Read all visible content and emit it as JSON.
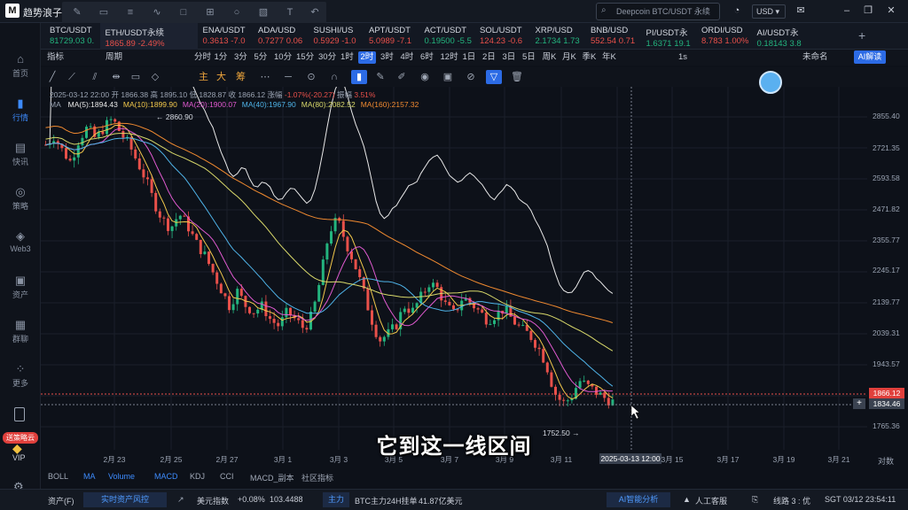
{
  "app": {
    "name": "趋势浪子",
    "search_placeholder": "Deepcoin BTC/USDT 永续",
    "currency": "USD"
  },
  "tickers": [
    {
      "sym": "BTC/USDT",
      "px": "81729.03",
      "chg": "0.",
      "dir": "up"
    },
    {
      "sym": "ETH/USDT永续",
      "px": "1865.89",
      "chg": "-2.49%",
      "dir": "dn",
      "active": true
    },
    {
      "sym": "ENA/USDT",
      "px": "0.3613",
      "chg": "-7.0",
      "dir": "dn"
    },
    {
      "sym": "ADA/USD",
      "px": "0.7277",
      "chg": "0.06",
      "dir": "dn"
    },
    {
      "sym": "SUSHI/US",
      "px": "0.5929",
      "chg": "-1.0",
      "dir": "dn"
    },
    {
      "sym": "APT/USDT",
      "px": "5.0989",
      "chg": "-7.1",
      "dir": "dn"
    },
    {
      "sym": "ACT/USDT",
      "px": "0.19500",
      "chg": "-5.5",
      "dir": "up"
    },
    {
      "sym": "SOL/USDT",
      "px": "124.23",
      "chg": "-0.6",
      "dir": "dn"
    },
    {
      "sym": "XRP/USD",
      "px": "2.1734",
      "chg": "1.73",
      "dir": "up"
    },
    {
      "sym": "BNB/USD",
      "px": "552.54",
      "chg": "0.71",
      "dir": "dn"
    },
    {
      "sym": "PI/USDT永",
      "px": "1.6371",
      "chg": "19.1",
      "dir": "up"
    },
    {
      "sym": "ORDI/USD",
      "px": "8.783",
      "chg": "1.00%",
      "dir": "dn"
    },
    {
      "sym": "AI/USDT永",
      "px": "0.18143",
      "chg": "3.8",
      "dir": "up"
    }
  ],
  "toolbar": {
    "indicator_label": "指标",
    "period_label": "周期",
    "intervals": [
      "分时",
      "1分",
      "3分",
      "5分",
      "10分",
      "15分",
      "30分",
      "1时",
      "2时",
      "3时",
      "4时",
      "6时",
      "12时",
      "1日",
      "2日",
      "3日",
      "5日",
      "周K",
      "月K",
      "季K",
      "年K"
    ],
    "active_interval": "2时",
    "right": {
      "sec": "1s",
      "layout": "未命名",
      "ai": "AI解读"
    }
  },
  "drawbar": {
    "tags": [
      "主",
      "大",
      "筹"
    ]
  },
  "sidebar": [
    {
      "label": "首页",
      "icon": "home-icon",
      "glyph": "⌂"
    },
    {
      "label": "行情",
      "icon": "chart-icon",
      "glyph": "▮",
      "active": true
    },
    {
      "label": "快讯",
      "icon": "news-icon",
      "glyph": "▤"
    },
    {
      "label": "策略",
      "icon": "strategy-icon",
      "glyph": "◎"
    },
    {
      "label": "Web3",
      "icon": "web3-icon",
      "glyph": "◈"
    },
    {
      "label": "资产",
      "icon": "wallet-icon",
      "glyph": "▣"
    },
    {
      "label": "群聊",
      "icon": "chat-icon",
      "glyph": "▦"
    },
    {
      "label": "更多",
      "icon": "more-icon",
      "glyph": "⁘"
    }
  ],
  "sidebar_bottom": {
    "promo": "送策略云",
    "vip": "VIP"
  },
  "candle_info": {
    "date": "2025-03-12 22:00",
    "open_label": "开",
    "open": "1866.38",
    "high_label": "高",
    "high": "1895.10",
    "low_label": "低",
    "low": "1828.87",
    "close_label": "收",
    "close": "1866.12",
    "chg_label": "涨幅",
    "chg": "-1.07%(-20.27)",
    "amp_label": "振幅",
    "amp": "3.51%"
  },
  "ma_info": [
    {
      "label": "MA(5):1894.43",
      "color": "#e8e8e8"
    },
    {
      "label": "MA(10):1899.90",
      "color": "#f2c84b"
    },
    {
      "label": "MA(20):1900.07",
      "color": "#e05ad0"
    },
    {
      "label": "MA(40):1967.90",
      "color": "#4fb3e8"
    },
    {
      "label": "MA(80):2082.52",
      "color": "#d8d86a"
    },
    {
      "label": "MA(160):2157.32",
      "color": "#f08a30"
    }
  ],
  "ma_title": "MA",
  "chart_data": {
    "type": "candlestick",
    "price_axis": [
      "2855.40",
      "2721.35",
      "2593.58",
      "2471.82",
      "2355.77",
      "2245.17",
      "2139.77",
      "2039.31",
      "1943.57",
      "1765.36"
    ],
    "x_labels": [
      "2月 23",
      "2月 25",
      "2月 27",
      "3月 1",
      "3月 3",
      "3月 5",
      "3月 7",
      "3月 9",
      "3月 11",
      "3月 15",
      "3月 17",
      "3月 19",
      "3月 21"
    ],
    "high_marker": "2860.90",
    "low_marker": "1752.50",
    "last_price": "1866.12",
    "crosshair_price": "1834.46",
    "crosshair_time": "2025-03-13 12:00",
    "close_path": [
      2760,
      2790,
      2740,
      2700,
      2780,
      2820,
      2780,
      2820,
      2850,
      2800,
      2760,
      2700,
      2640,
      2560,
      2500,
      2470,
      2520,
      2480,
      2420,
      2380,
      2320,
      2260,
      2200,
      2250,
      2200,
      2180,
      2200,
      2150,
      2130,
      2180,
      2150,
      2120,
      2170,
      2300,
      2460,
      2500,
      2420,
      2350,
      2260,
      2160,
      2080,
      2100,
      2130,
      2200,
      2180,
      2230,
      2280,
      2260,
      2200,
      2170,
      2230,
      2210,
      2180,
      2150,
      2170,
      2190,
      2150,
      2120,
      2100,
      2060,
      2000,
      1900,
      1860,
      1880,
      1940,
      1920,
      1900,
      1880,
      1866
    ]
  },
  "price_lines": {
    "scale_label": "对数"
  },
  "bottom_indicators": [
    "BOLL",
    "MA",
    "Volume",
    "MACD",
    "KDJ",
    "CCI",
    "MACD_副本",
    "社区指标"
  ],
  "active_indicators": [
    "MA",
    "MACD",
    "Volume"
  ],
  "status": {
    "assets": "资产(F)",
    "risk": "实时资产风控",
    "index_name": "美元指数",
    "index_chg": "+0.08%",
    "index_val": "103.4488",
    "main_label": "主力",
    "main_text": "BTC主力24H挂单",
    "main_val": "41.87亿美元",
    "ai_analysis": "AI智能分析",
    "cs": "人工客服",
    "line": "线路 3 : 优",
    "clock": "SGT 03/12 23:54:11"
  },
  "subtitle": "它到这一线区间",
  "colors": {
    "up": "#23b47e",
    "down": "#e8504a",
    "accent": "#2c6be5"
  }
}
